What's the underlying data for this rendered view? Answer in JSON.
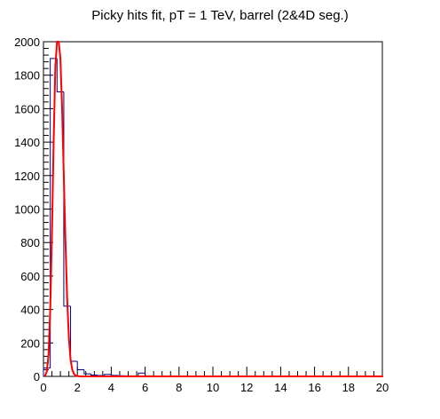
{
  "chart_data": {
    "type": "bar",
    "title": "Picky hits fit, pT = 1 TeV, barrel (2&4D seg.)",
    "xlabel": "",
    "ylabel": "",
    "xlim": [
      0,
      20
    ],
    "ylim": [
      0,
      2000
    ],
    "x_ticks": [
      0,
      2,
      4,
      6,
      8,
      10,
      12,
      14,
      16,
      18,
      20
    ],
    "y_ticks": [
      0,
      200,
      400,
      600,
      800,
      1000,
      1200,
      1400,
      1600,
      1800,
      2000
    ],
    "grid": false,
    "colors": {
      "histogram": "#000080",
      "fit": "#ff0000"
    },
    "series": [
      {
        "type": "histogram",
        "bin_edges": [
          0,
          0.4,
          0.8,
          1.2,
          1.6,
          2.0,
          2.4,
          2.8,
          3.2,
          3.6,
          4.0,
          4.4,
          4.8,
          5.2,
          5.6,
          6.0,
          6.4,
          6.8,
          7.2,
          7.6,
          8.0,
          8.4,
          8.8,
          9.2,
          9.6,
          10.0,
          10.4,
          10.8,
          11.2,
          11.6,
          12.0,
          12.4,
          12.8,
          13.2,
          13.6,
          14.0,
          14.4,
          14.8,
          15.2,
          15.6,
          16.0,
          16.4,
          16.8,
          17.2,
          17.6,
          18.0,
          18.4,
          18.8,
          19.2,
          19.6,
          20.0
        ],
        "values": [
          50,
          1900,
          1700,
          420,
          90,
          40,
          15,
          8,
          5,
          12,
          6,
          4,
          3,
          3,
          20,
          3,
          2,
          2,
          2,
          2,
          2,
          2,
          2,
          2,
          2,
          2,
          2,
          2,
          2,
          2,
          2,
          2,
          2,
          2,
          2,
          2,
          2,
          2,
          2,
          2,
          2,
          2,
          2,
          2,
          2,
          2,
          2,
          2,
          2,
          2
        ]
      },
      {
        "type": "fit",
        "x": [
          0.1,
          0.2,
          0.3,
          0.4,
          0.5,
          0.6,
          0.7,
          0.8,
          0.9,
          1.0,
          1.1,
          1.2,
          1.3,
          1.4,
          1.5,
          1.6,
          1.7,
          1.8,
          1.9,
          2.0,
          2.2,
          2.5,
          3.0,
          20.0
        ],
        "y": [
          5,
          30,
          130,
          400,
          850,
          1400,
          1850,
          2000,
          2000,
          1900,
          1600,
          1200,
          800,
          460,
          230,
          100,
          40,
          15,
          5,
          2,
          0,
          0,
          0,
          0
        ]
      }
    ]
  }
}
